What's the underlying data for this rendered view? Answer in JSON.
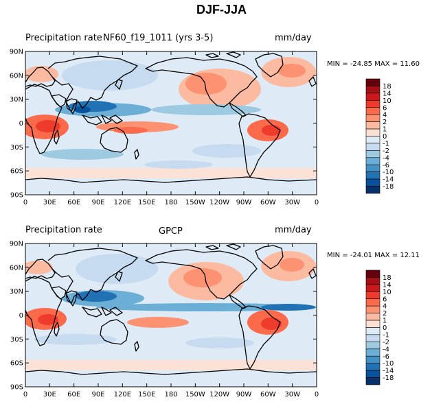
{
  "title": "DJF-JJA",
  "panels": [
    {
      "left_label": "Precipitation rate",
      "center_label": "NF60_f19_1011 (yrs 3-5)",
      "right_label": "mm/day",
      "min_label": "MIN =",
      "min_value": "-24.85",
      "max_label": "MAX =",
      "max_value": "11.60"
    },
    {
      "left_label": "Precipitation rate",
      "center_label": "GPCP",
      "right_label": "mm/day",
      "min_label": "MIN =",
      "min_value": "-24.01",
      "max_label": "MAX =",
      "max_value": "12.11"
    }
  ],
  "lat_ticks": [
    "90N",
    "60N",
    "30N",
    "0",
    "30S",
    "60S",
    "90S"
  ],
  "lon_ticks": [
    "0",
    "30E",
    "60E",
    "90E",
    "120E",
    "150E",
    "180",
    "150W",
    "120W",
    "90W",
    "60W",
    "30W",
    "0"
  ],
  "colorbar": {
    "labels": [
      "18",
      "14",
      "10",
      "6",
      "4",
      "2",
      "1",
      "0",
      "-1",
      "-2",
      "-4",
      "-6",
      "-10",
      "-14",
      "-18"
    ],
    "colors": [
      "#67000d",
      "#a50f15",
      "#cb181d",
      "#ef3b2c",
      "#fb6a4a",
      "#fc9272",
      "#fcbba1",
      "#fee0d2",
      "#deebf7",
      "#c6dbef",
      "#9ecae1",
      "#6baed6",
      "#4292c6",
      "#2171b5",
      "#08519c",
      "#08306b"
    ]
  }
}
